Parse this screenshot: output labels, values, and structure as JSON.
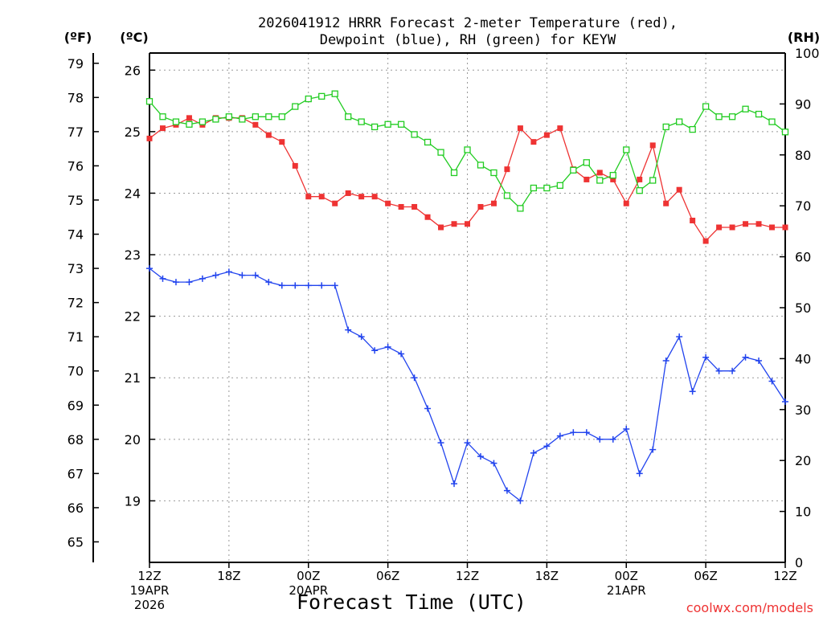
{
  "chart_data": {
    "type": "line",
    "title_line1": "2026041912 HRRR Forecast 2-meter Temperature (red),",
    "title_line2": "Dewpoint (blue), RH (green) for KEYW",
    "xlabel": "Forecast Time (UTC)",
    "credit": "coolwx.com/models",
    "axis_units": {
      "f": "(ºF)",
      "c": "(ºC)",
      "rh": "(RH)"
    },
    "y_f_ticks": [
      "65",
      "66",
      "67",
      "68",
      "69",
      "70",
      "71",
      "72",
      "73",
      "74",
      "75",
      "76",
      "77",
      "78",
      "79"
    ],
    "y_c_ticks": [
      "19",
      "20",
      "21",
      "22",
      "23",
      "24",
      "25",
      "26"
    ],
    "y_rh_ticks": [
      "0",
      "10",
      "20",
      "30",
      "40",
      "50",
      "60",
      "70",
      "80",
      "90",
      "100"
    ],
    "ylim_f": [
      64.4,
      79.3
    ],
    "ylim_rh": [
      0,
      100
    ],
    "grid": true,
    "x_ticks": [
      {
        "label": "12Z",
        "sub1": "19APR",
        "sub2": "2026"
      },
      {
        "label": "18Z",
        "sub1": "",
        "sub2": ""
      },
      {
        "label": "00Z",
        "sub1": "20APR",
        "sub2": ""
      },
      {
        "label": "06Z",
        "sub1": "",
        "sub2": ""
      },
      {
        "label": "12Z",
        "sub1": "",
        "sub2": ""
      },
      {
        "label": "18Z",
        "sub1": "",
        "sub2": ""
      },
      {
        "label": "00Z",
        "sub1": "21APR",
        "sub2": ""
      },
      {
        "label": "06Z",
        "sub1": "",
        "sub2": ""
      },
      {
        "label": "12Z",
        "sub1": "",
        "sub2": ""
      }
    ],
    "x_hours": [
      0,
      1,
      2,
      3,
      4,
      5,
      6,
      7,
      8,
      9,
      10,
      11,
      12,
      13,
      14,
      15,
      16,
      17,
      18,
      19,
      20,
      21,
      22,
      23,
      24,
      25,
      26,
      27,
      28,
      29,
      30,
      31,
      32,
      33,
      34,
      35,
      36,
      37,
      38,
      39,
      40,
      41,
      42,
      43,
      44,
      45,
      46,
      47,
      48
    ],
    "series": [
      {
        "name": "Temperature",
        "unit": "F",
        "color": "#ee3333",
        "marker": "filled-square",
        "values": [
          76.8,
          77.1,
          77.2,
          77.4,
          77.2,
          77.4,
          77.4,
          77.4,
          77.2,
          76.9,
          76.7,
          76.0,
          75.1,
          75.1,
          74.9,
          75.2,
          75.1,
          75.1,
          74.9,
          74.8,
          74.8,
          74.5,
          74.2,
          74.3,
          74.3,
          74.8,
          74.9,
          75.9,
          77.1,
          76.7,
          76.9,
          77.1,
          75.9,
          75.6,
          75.8,
          75.6,
          74.9,
          75.6,
          76.6,
          74.9,
          75.3,
          74.4,
          73.8,
          74.2,
          74.2,
          74.3,
          74.3,
          74.2,
          74.2
        ]
      },
      {
        "name": "Dewpoint",
        "unit": "F",
        "color": "#2244ee",
        "marker": "plus",
        "values": [
          73.0,
          72.7,
          72.6,
          72.6,
          72.7,
          72.8,
          72.9,
          72.8,
          72.8,
          72.6,
          72.5,
          72.5,
          72.5,
          72.5,
          72.5,
          71.2,
          71.0,
          70.6,
          70.7,
          70.5,
          69.8,
          68.9,
          67.9,
          66.7,
          67.9,
          67.5,
          67.3,
          66.5,
          66.2,
          67.6,
          67.8,
          68.1,
          68.2,
          68.2,
          68.0,
          68.0,
          68.3,
          67.0,
          67.7,
          70.3,
          71.0,
          69.4,
          70.4,
          70.0,
          70.0,
          70.4,
          70.3,
          69.7,
          69.1
        ]
      },
      {
        "name": "RH",
        "unit": "%",
        "color": "#22cc22",
        "marker": "open-square",
        "values": [
          90.5,
          87.5,
          86.5,
          86.0,
          86.5,
          87.0,
          87.5,
          87.0,
          87.5,
          87.5,
          87.5,
          89.5,
          91.0,
          91.5,
          92.0,
          87.5,
          86.5,
          85.5,
          86.0,
          86.0,
          84.0,
          82.5,
          80.5,
          76.5,
          81.0,
          78.0,
          76.5,
          72.0,
          69.5,
          73.5,
          73.5,
          74.0,
          77.0,
          78.5,
          75.0,
          76.0,
          81.0,
          73.0,
          75.0,
          85.5,
          86.5,
          85.0,
          89.5,
          87.5,
          87.5,
          89.0,
          88.0,
          86.5,
          84.5
        ]
      }
    ]
  }
}
